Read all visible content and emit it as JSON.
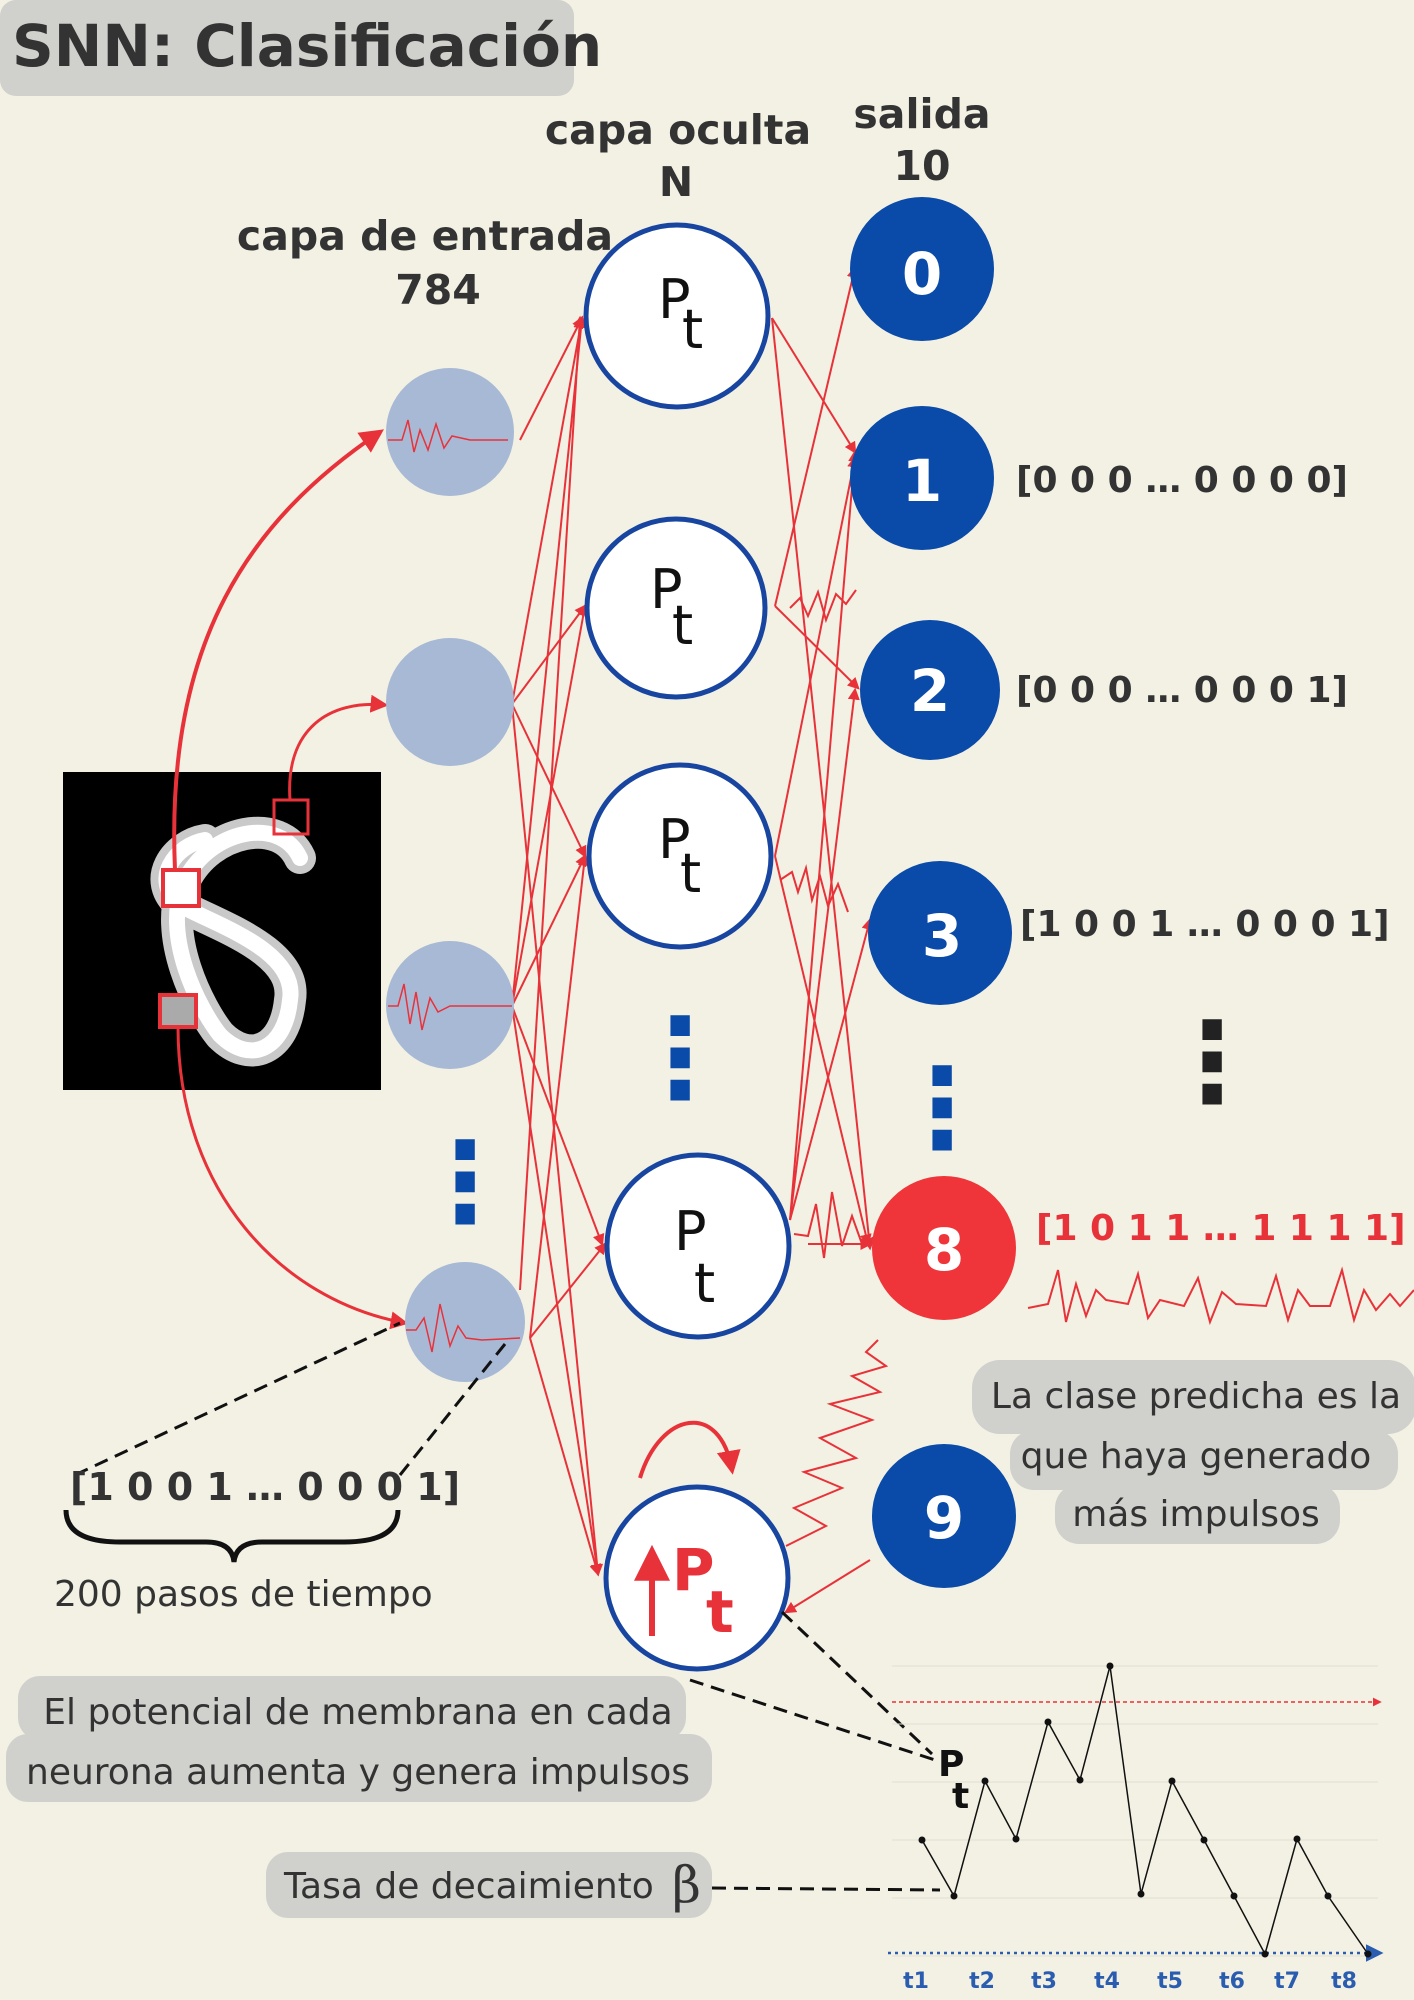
{
  "title": "SNN: Clasificación",
  "headers": {
    "input_line1": "capa de entrada",
    "input_line2": "784",
    "hidden_line1": "capa oculta",
    "hidden_line2": "N",
    "output_line1": "salida",
    "output_line2": "10"
  },
  "neuron_label": {
    "main": "P",
    "sub": "t"
  },
  "ellipsis": "⋮",
  "output_neurons": [
    {
      "label": "0",
      "spikes": ""
    },
    {
      "label": "1",
      "spikes": "[0 0 0  … 0 0 0 0]"
    },
    {
      "label": "2",
      "spikes": "[0 0 0  …  0 0 0 1]"
    },
    {
      "label": "3",
      "spikes": "[1 0 0 1  … 0 0 0 1]"
    },
    {
      "label": "8",
      "spikes": "[1 0 1  1  … 1  1  1 1]"
    },
    {
      "label": "9",
      "spikes": ""
    }
  ],
  "input_spike_vector": "[1 0 0 1  … 0 0 0 1]",
  "time_steps_label": "200 pasos de tiempo",
  "callouts": {
    "predicted_line1": "La clase predicha es la",
    "predicted_line2": "que haya generado",
    "predicted_line3": "más impulsos",
    "membrane_line1": "El potencial de membrana en cada",
    "membrane_line2": "neurona aumenta y genera impulsos",
    "decay_label": "Tasa de decaimiento",
    "decay_symbol": "β"
  },
  "potential_plot": {
    "label_main": "P",
    "label_sub": "t",
    "time_ticks": [
      "t1",
      "t2",
      "t3",
      "t4",
      "t5",
      "t6",
      "t7",
      "t8"
    ]
  },
  "colors": {
    "background": "#f3f1e3",
    "input_neuron": "#a8b9d6",
    "output_neuron": "#0a4aa8",
    "winner": "#f0353a",
    "connection": "#e8323a",
    "hidden_ring": "#1745a0",
    "tick_text": "#2a5db0"
  }
}
